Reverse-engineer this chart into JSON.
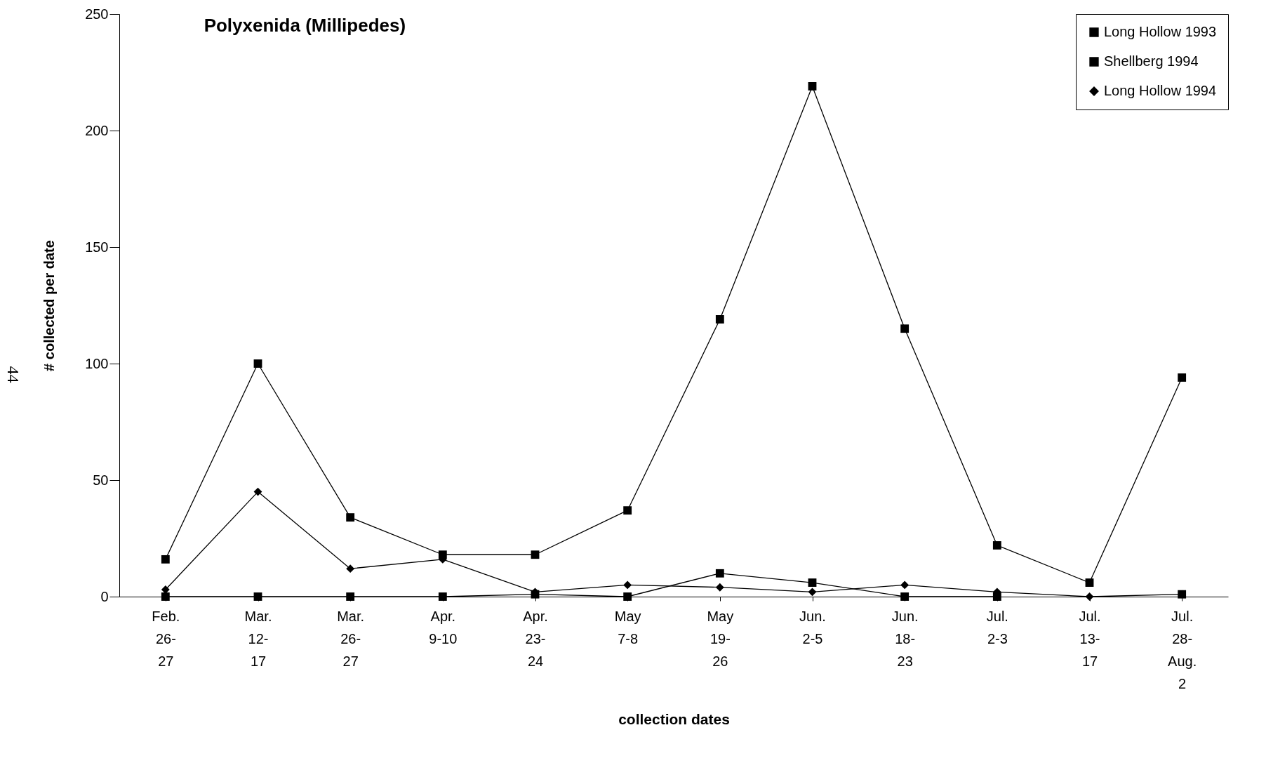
{
  "chart_data": {
    "type": "line",
    "title": "Polyxenida (Millipedes)",
    "xlabel": "collection dates",
    "ylabel": "# collected per date",
    "categories": [
      "Feb.\n26-\n27",
      "Mar.\n12-\n17",
      "Mar.\n26-\n27",
      "Apr.\n9-10",
      "Apr.\n23-\n24",
      "May\n7-8",
      "May\n19-\n26",
      "Jun.\n2-5",
      "Jun.\n18-\n23",
      "Jul.\n2-3",
      "Jul.\n13-\n17",
      "Jul.\n28-\nAug.\n2"
    ],
    "series": [
      {
        "name": "Long Hollow 1993",
        "color": "#000000",
        "marker": "square",
        "values": [
          0,
          0,
          0,
          0,
          1,
          0,
          10,
          6,
          0,
          0,
          null,
          1
        ]
      },
      {
        "name": "Shellberg 1994",
        "color": "#000000",
        "marker": "square",
        "values": [
          16,
          100,
          34,
          18,
          18,
          37,
          119,
          219,
          115,
          22,
          6,
          94
        ]
      },
      {
        "name": "Long Hollow 1994",
        "color": "#000000",
        "marker": "diamond",
        "values": [
          3,
          45,
          12,
          16,
          2,
          5,
          4,
          2,
          5,
          2,
          0,
          1
        ]
      }
    ],
    "ylim": [
      0,
      250
    ],
    "yticks": [
      0,
      50,
      100,
      150,
      200,
      250
    ],
    "grid": false,
    "legend": "top right",
    "line_style": "solid",
    "annotations": [
      "44"
    ]
  }
}
